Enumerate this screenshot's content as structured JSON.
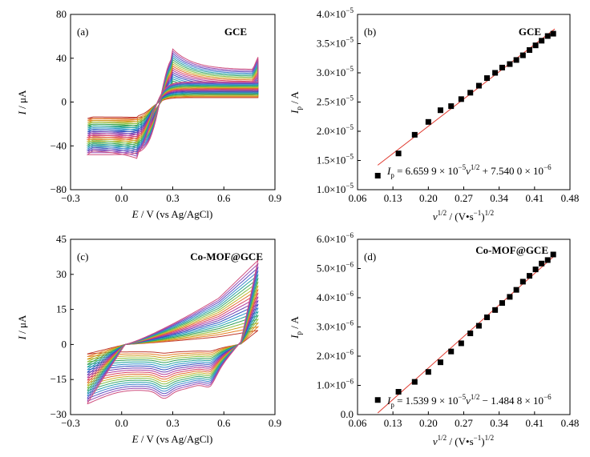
{
  "figure": {
    "panels": [
      {
        "tag": "(a)",
        "title": "GCE"
      },
      {
        "tag": "(b)",
        "title": "GCE",
        "equation": "I_p = 6.659 9 × 10^-5 v^1/2 + 7.540 0 × 10^-6"
      },
      {
        "tag": "(c)",
        "title": "Co-MOF@GCE"
      },
      {
        "tag": "(d)",
        "title": "Co-MOF@GCE",
        "equation": "I_p = 1.539 9 × 10^-5 v^1/2 − 1.484 8 × 10^-6"
      }
    ]
  },
  "chart_data": [
    {
      "id": "a",
      "type": "line",
      "title": "GCE",
      "xlabel": "E / V (vs Ag/AgCl)",
      "ylabel": "I / μA",
      "xlim": [
        -0.3,
        0.9
      ],
      "ylim": [
        -80,
        80
      ],
      "xticks": [
        -0.3,
        0.0,
        0.3,
        0.6,
        0.9
      ],
      "xtick_labels": [
        "−0.3",
        "0.0",
        "0.3",
        "0.6",
        "0.9"
      ],
      "yticks": [
        -80,
        -40,
        0,
        40,
        80
      ],
      "ytick_labels": [
        "−80",
        "−40",
        "0",
        "40",
        "80"
      ],
      "curve_count": 20,
      "curve_colors": [
        "#c0392b",
        "#e67e22",
        "#c8a01c",
        "#8bbf3a",
        "#2e9e55",
        "#1fa39a",
        "#2a8fc9",
        "#2c4fbf",
        "#6f3fb3",
        "#b13a9e",
        "#d94364",
        "#e36b2e",
        "#c9b12b",
        "#7fbf45",
        "#3aa86b",
        "#27a0a6",
        "#3f86cf",
        "#5a4fc0",
        "#9b4ab3",
        "#cf4f7f"
      ],
      "curve_params": {
        "x_start": -0.2,
        "x_end": 0.8,
        "anodic_peak": {
          "E": 0.29,
          "I_min": 12,
          "I_max": 50
        },
        "cathodic_peak": {
          "E": 0.1,
          "I_min": -14,
          "I_max": -52
        },
        "start_current": {
          "I_min": -15,
          "I_max": -48
        },
        "switch_current": {
          "I_min": 9,
          "I_max": 41
        }
      }
    },
    {
      "id": "b",
      "type": "scatter",
      "title": "GCE",
      "xlabel": "v^1/2 / (V·s^-1)^1/2",
      "ylabel": "I_p / A",
      "xlim": [
        0.06,
        0.48
      ],
      "ylim": [
        1e-05,
        4e-05
      ],
      "xticks": [
        0.06,
        0.13,
        0.2,
        0.27,
        0.34,
        0.41,
        0.48
      ],
      "xtick_labels": [
        "0.06",
        "0.13",
        "0.20",
        "0.27",
        "0.34",
        "0.41",
        "0.48"
      ],
      "yticks": [
        1e-05,
        1.5e-05,
        2e-05,
        2.5e-05,
        3e-05,
        3.5e-05,
        4e-05
      ],
      "ytick_mantissas": [
        "1.0",
        "1.5",
        "2.0",
        "2.5",
        "3.0",
        "3.5",
        "4.0"
      ],
      "ytick_exponent": "−5",
      "x": [
        0.1,
        0.141,
        0.173,
        0.2,
        0.224,
        0.245,
        0.265,
        0.283,
        0.3,
        0.316,
        0.332,
        0.346,
        0.361,
        0.374,
        0.387,
        0.4,
        0.412,
        0.424,
        0.436,
        0.447
      ],
      "y": [
        1.24e-05,
        1.62e-05,
        1.94e-05,
        2.16e-05,
        2.36e-05,
        2.43e-05,
        2.55e-05,
        2.66e-05,
        2.78e-05,
        2.91e-05,
        3e-05,
        3.09e-05,
        3.15e-05,
        3.22e-05,
        3.3e-05,
        3.39e-05,
        3.47e-05,
        3.55e-05,
        3.63e-05,
        3.67e-05
      ],
      "fit": {
        "slope": 6.6599e-05,
        "intercept": 7.54e-06,
        "x_range": [
          0.1,
          0.45
        ],
        "color": "#e03a2f"
      }
    },
    {
      "id": "c",
      "type": "line",
      "title": "Co-MOF@GCE",
      "xlabel": "E / V (vs Ag/AgCl)",
      "ylabel": "I / μA",
      "xlim": [
        -0.3,
        0.9
      ],
      "ylim": [
        -30,
        45
      ],
      "xticks": [
        -0.3,
        0.0,
        0.3,
        0.6,
        0.9
      ],
      "xtick_labels": [
        "−0.3",
        "0.0",
        "0.3",
        "0.6",
        "0.9"
      ],
      "yticks": [
        -30,
        -15,
        0,
        15,
        30,
        45
      ],
      "ytick_labels": [
        "−30",
        "−15",
        "0",
        "15",
        "30",
        "45"
      ],
      "curve_count": 20,
      "curve_colors": [
        "#c0392b",
        "#e67e22",
        "#c8a01c",
        "#8bbf3a",
        "#2e9e55",
        "#1fa39a",
        "#2a8fc9",
        "#2c4fbf",
        "#6f3fb3",
        "#b13a9e",
        "#d94364",
        "#e36b2e",
        "#c9b12b",
        "#7fbf45",
        "#3aa86b",
        "#27a0a6",
        "#3f86cf",
        "#5a4fc0",
        "#9b4ab3",
        "#cf4f7f"
      ],
      "curve_params": {
        "x_start": -0.2,
        "x_end": 0.8,
        "anodic_end": {
          "I_min": 6,
          "I_max": 36
        },
        "cathodic_shoulders_E": [
          0.25,
          0.52
        ],
        "start_current": {
          "I_min": -4,
          "I_max": -25
        }
      }
    },
    {
      "id": "d",
      "type": "scatter",
      "title": "Co-MOF@GCE",
      "xlabel": "v^1/2 / (V·s^-1)^1/2",
      "ylabel": "I_p / A",
      "xlim": [
        0.06,
        0.48
      ],
      "ylim": [
        0.0,
        6e-06
      ],
      "xticks": [
        0.06,
        0.13,
        0.2,
        0.27,
        0.34,
        0.41,
        0.48
      ],
      "xtick_labels": [
        "0.06",
        "0.13",
        "0.20",
        "0.27",
        "0.34",
        "0.41",
        "0.48"
      ],
      "yticks": [
        0.0,
        1e-06,
        2e-06,
        3e-06,
        4e-06,
        5e-06,
        6e-06
      ],
      "ytick_mantissas": [
        "0.0",
        "1.0",
        "2.0",
        "3.0",
        "4.0",
        "5.0",
        "6.0"
      ],
      "ytick_exponent": "−6",
      "x": [
        0.1,
        0.141,
        0.173,
        0.2,
        0.224,
        0.245,
        0.265,
        0.283,
        0.3,
        0.316,
        0.332,
        0.346,
        0.361,
        0.374,
        0.387,
        0.4,
        0.412,
        0.424,
        0.436,
        0.447
      ],
      "y": [
        5e-07,
        7.8e-07,
        1.12e-06,
        1.46e-06,
        1.79e-06,
        2.16e-06,
        2.44e-06,
        2.78e-06,
        3.04e-06,
        3.33e-06,
        3.58e-06,
        3.82e-06,
        4.03e-06,
        4.27e-06,
        4.55e-06,
        4.75e-06,
        4.97e-06,
        5.17e-06,
        5.29e-06,
        5.48e-06
      ],
      "fit": {
        "slope": 1.5399e-05,
        "intercept": -1.4848e-06,
        "x_range": [
          0.1,
          0.45
        ],
        "color": "#e03a2f"
      }
    }
  ]
}
